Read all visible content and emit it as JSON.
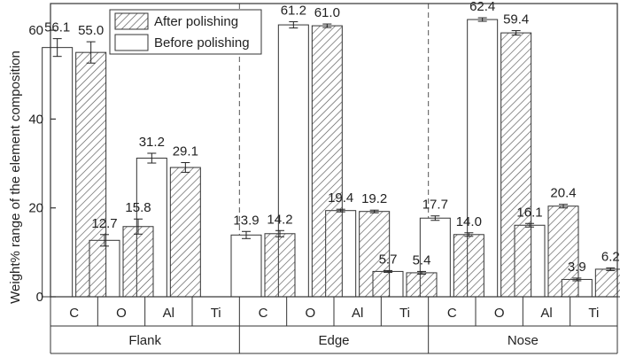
{
  "chart_data": {
    "type": "bar",
    "ylabel": "Weight% range of the element composition",
    "ylim": [
      0,
      66
    ],
    "yticks": [
      0,
      20,
      40,
      60
    ],
    "grid": false,
    "legend_position": "top-left",
    "groups": [
      "Flank",
      "Edge",
      "Nose"
    ],
    "elements": [
      "C",
      "O",
      "Al",
      "Ti"
    ],
    "series": [
      {
        "name": "Before polishing",
        "pattern": "plain",
        "values": [
          56.1,
          12.7,
          31.2,
          null,
          13.9,
          61.2,
          19.4,
          5.7,
          17.7,
          62.4,
          16.1,
          3.9
        ],
        "errors": [
          2.0,
          1.3,
          1.1,
          null,
          0.8,
          0.7,
          0.3,
          0.2,
          0.5,
          0.4,
          0.4,
          0.3
        ]
      },
      {
        "name": "After polishing",
        "pattern": "hatched",
        "values": [
          55.0,
          15.8,
          29.1,
          null,
          14.2,
          61.0,
          19.2,
          5.4,
          14.0,
          59.4,
          20.4,
          6.2
        ],
        "errors": [
          2.4,
          1.7,
          1.1,
          null,
          0.7,
          0.4,
          0.3,
          0.3,
          0.4,
          0.5,
          0.4,
          0.3
        ]
      }
    ],
    "labels": {
      "before": [
        "56.1",
        "12.7",
        "31.2",
        "",
        "13.9",
        "61.2",
        "19.4",
        "5.7",
        "17.7",
        "62.4",
        "16.1",
        "3.9"
      ],
      "after": [
        "55.0",
        "15.8",
        "29.1",
        "",
        "14.2",
        "61.0",
        "19.2",
        "5.4",
        "14.0",
        "59.4",
        "20.4",
        "6.2"
      ]
    }
  }
}
